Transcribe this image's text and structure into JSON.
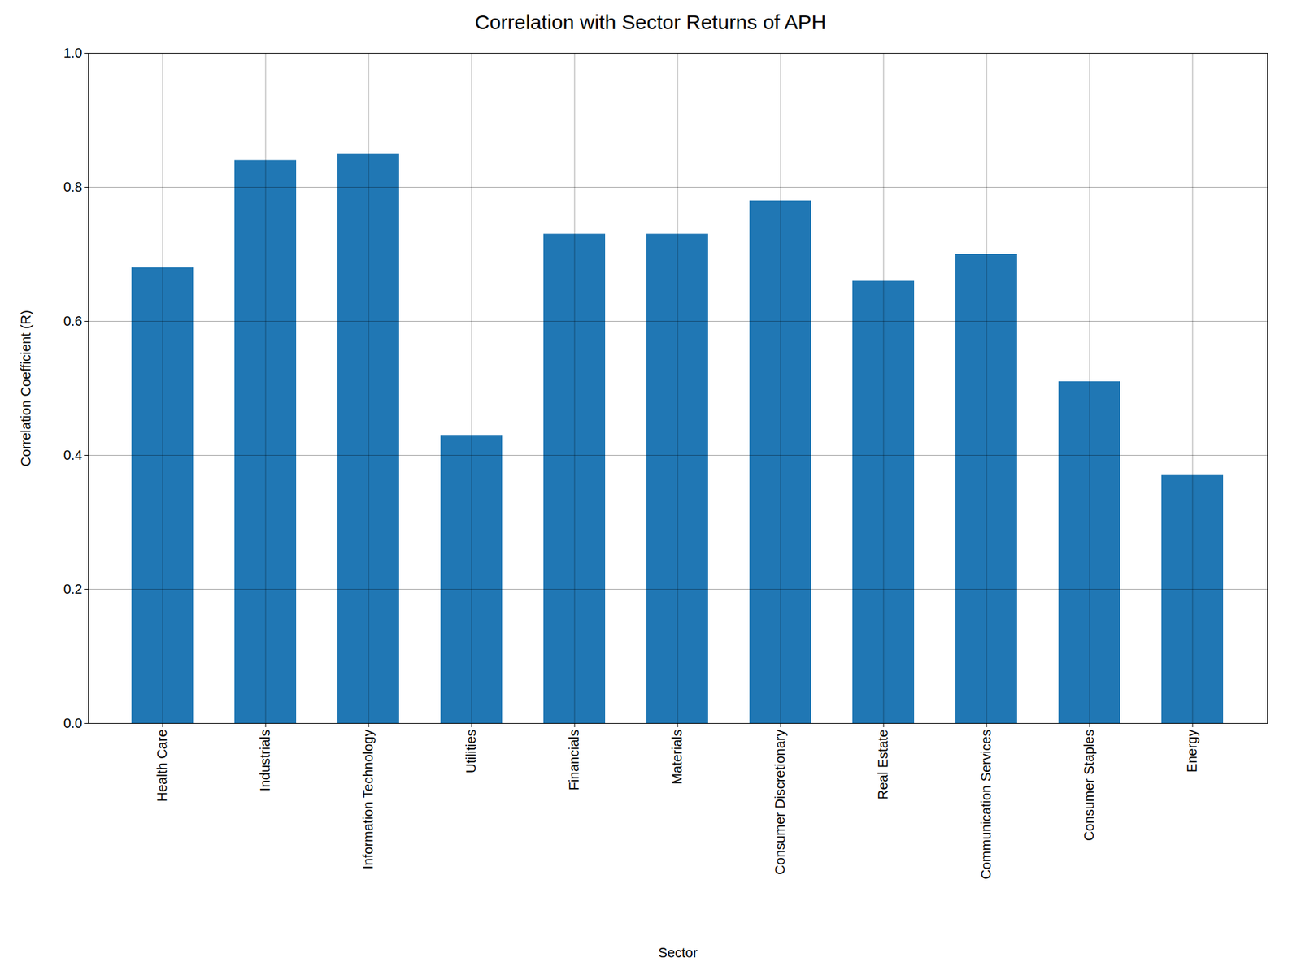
{
  "chart_data": {
    "type": "bar",
    "title": "Correlation with Sector Returns of APH",
    "xlabel": "Sector",
    "ylabel": "Correlation Coefficient (R)",
    "categories": [
      "Health Care",
      "Industrials",
      "Information Technology",
      "Utilities",
      "Financials",
      "Materials",
      "Consumer Discretionary",
      "Real Estate",
      "Communication Services",
      "Consumer Staples",
      "Energy"
    ],
    "values": [
      0.68,
      0.84,
      0.85,
      0.43,
      0.73,
      0.73,
      0.78,
      0.66,
      0.7,
      0.51,
      0.37
    ],
    "color": "#2077b4",
    "ylim": [
      0.0,
      1.0
    ],
    "yticks": [
      {
        "value": 0.0,
        "label": "0.0"
      },
      {
        "value": 0.2,
        "label": "0.2"
      },
      {
        "value": 0.4,
        "label": "0.4"
      },
      {
        "value": 0.6,
        "label": "0.6"
      },
      {
        "value": 0.8,
        "label": "0.8"
      },
      {
        "value": 1.0,
        "label": "1.0"
      }
    ],
    "grid": true
  }
}
